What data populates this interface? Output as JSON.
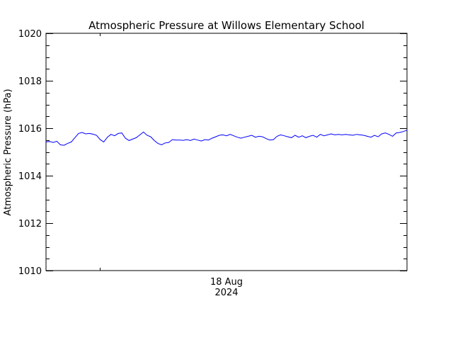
{
  "chart_data": {
    "type": "line",
    "title": "Atmospheric Pressure at Willows Elementary School",
    "xlabel": "",
    "ylabel": "Atmospheric Pressure (hPa)",
    "ylim": [
      1010,
      1020
    ],
    "yticks": [
      1010,
      1012,
      1014,
      1016,
      1018,
      1020
    ],
    "ytick_labels": [
      "1010",
      "1012",
      "1014",
      "1016",
      "1018",
      "1020"
    ],
    "yminor_step": 0.5,
    "xtick_labels": [
      {
        "line1": "18 Aug",
        "line2": "2024"
      }
    ],
    "x_minor_tick_fraction": 0.149,
    "grid": false,
    "legend": null,
    "line_color": "#0000ff",
    "series": [
      {
        "name": "Atmospheric Pressure",
        "x_fraction": [
          0.0,
          0.01,
          0.02,
          0.03,
          0.04,
          0.05,
          0.06,
          0.07,
          0.08,
          0.09,
          0.1,
          0.11,
          0.12,
          0.13,
          0.14,
          0.15,
          0.16,
          0.17,
          0.18,
          0.19,
          0.2,
          0.21,
          0.22,
          0.23,
          0.24,
          0.25,
          0.26,
          0.27,
          0.28,
          0.29,
          0.3,
          0.31,
          0.32,
          0.33,
          0.34,
          0.35,
          0.36,
          0.37,
          0.38,
          0.39,
          0.4,
          0.41,
          0.42,
          0.43,
          0.44,
          0.45,
          0.46,
          0.47,
          0.48,
          0.49,
          0.5,
          0.51,
          0.52,
          0.53,
          0.54,
          0.55,
          0.56,
          0.57,
          0.58,
          0.59,
          0.6,
          0.61,
          0.62,
          0.63,
          0.64,
          0.65,
          0.66,
          0.67,
          0.68,
          0.69,
          0.7,
          0.71,
          0.72,
          0.73,
          0.74,
          0.75,
          0.76,
          0.77,
          0.78,
          0.79,
          0.8,
          0.81,
          0.82,
          0.83,
          0.84,
          0.85,
          0.86,
          0.87,
          0.88,
          0.89,
          0.9,
          0.91,
          0.92,
          0.93,
          0.94,
          0.95,
          0.96,
          0.97,
          0.98,
          0.99,
          1.0
        ],
        "values": [
          1015.42,
          1015.44,
          1015.4,
          1015.45,
          1015.3,
          1015.28,
          1015.36,
          1015.42,
          1015.6,
          1015.78,
          1015.82,
          1015.76,
          1015.78,
          1015.75,
          1015.7,
          1015.52,
          1015.42,
          1015.62,
          1015.74,
          1015.68,
          1015.78,
          1015.8,
          1015.58,
          1015.48,
          1015.54,
          1015.6,
          1015.72,
          1015.84,
          1015.7,
          1015.64,
          1015.48,
          1015.36,
          1015.3,
          1015.38,
          1015.4,
          1015.52,
          1015.5,
          1015.5,
          1015.49,
          1015.52,
          1015.48,
          1015.54,
          1015.5,
          1015.46,
          1015.52,
          1015.5,
          1015.58,
          1015.64,
          1015.7,
          1015.72,
          1015.68,
          1015.74,
          1015.68,
          1015.62,
          1015.58,
          1015.62,
          1015.66,
          1015.7,
          1015.62,
          1015.66,
          1015.64,
          1015.56,
          1015.5,
          1015.52,
          1015.66,
          1015.72,
          1015.68,
          1015.64,
          1015.6,
          1015.7,
          1015.62,
          1015.68,
          1015.6,
          1015.66,
          1015.7,
          1015.62,
          1015.74,
          1015.68,
          1015.72,
          1015.76,
          1015.72,
          1015.74,
          1015.72,
          1015.74,
          1015.72,
          1015.7,
          1015.74,
          1015.72,
          1015.7,
          1015.66,
          1015.62,
          1015.7,
          1015.64,
          1015.76,
          1015.8,
          1015.74,
          1015.66,
          1015.8,
          1015.82,
          1015.86,
          1015.92
        ]
      }
    ]
  }
}
